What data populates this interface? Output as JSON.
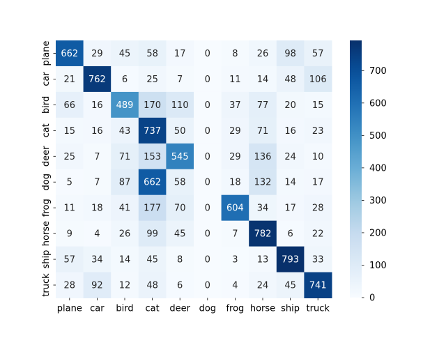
{
  "chart_data": {
    "type": "heatmap",
    "colormap": "Blues",
    "x_labels": [
      "plane",
      "car",
      "bird",
      "cat",
      "deer",
      "dog",
      "frog",
      "horse",
      "ship",
      "truck"
    ],
    "y_labels": [
      "plane",
      "car",
      "bird",
      "cat",
      "deer",
      "dog",
      "frog",
      "horse",
      "ship",
      "truck"
    ],
    "values": [
      [
        662,
        29,
        45,
        58,
        17,
        0,
        8,
        26,
        98,
        57
      ],
      [
        21,
        762,
        6,
        25,
        7,
        0,
        11,
        14,
        48,
        106
      ],
      [
        66,
        16,
        489,
        170,
        110,
        0,
        37,
        77,
        20,
        15
      ],
      [
        15,
        16,
        43,
        737,
        50,
        0,
        29,
        71,
        16,
        23
      ],
      [
        25,
        7,
        71,
        153,
        545,
        0,
        29,
        136,
        24,
        10
      ],
      [
        5,
        7,
        87,
        662,
        58,
        0,
        18,
        132,
        14,
        17
      ],
      [
        11,
        18,
        41,
        177,
        70,
        0,
        604,
        34,
        17,
        28
      ],
      [
        9,
        4,
        26,
        99,
        45,
        0,
        7,
        782,
        6,
        22
      ],
      [
        57,
        34,
        14,
        45,
        8,
        0,
        3,
        13,
        793,
        33
      ],
      [
        28,
        92,
        12,
        48,
        6,
        0,
        4,
        24,
        45,
        741
      ]
    ],
    "vmin": 0,
    "vmax": 793,
    "colorbar_ticks": [
      "0",
      "100",
      "200",
      "300",
      "400",
      "500",
      "600",
      "700"
    ],
    "grid": false,
    "legend": "colorbar-right"
  }
}
